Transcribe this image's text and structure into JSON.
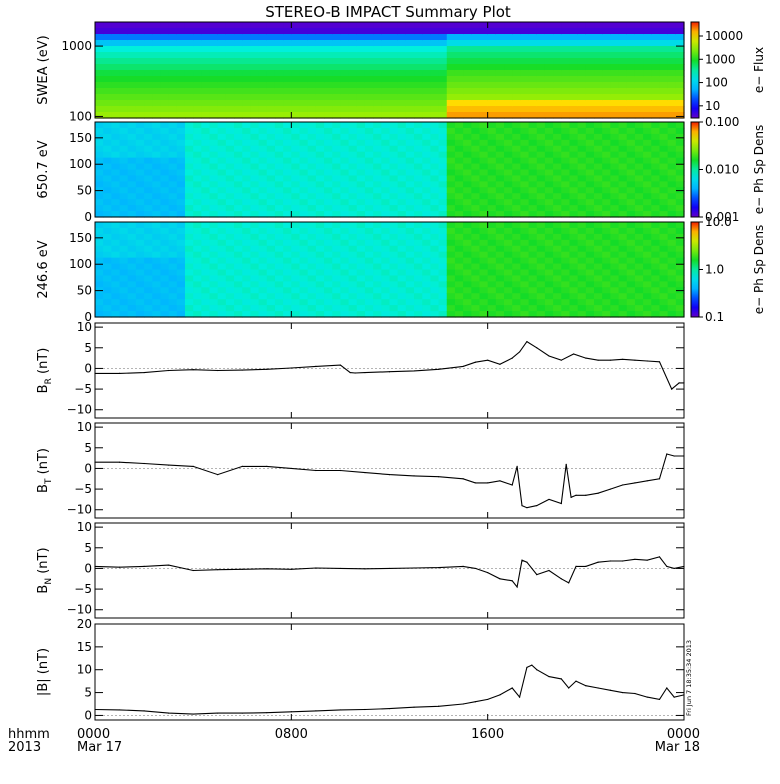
{
  "title": "STEREO-B IMPACT Summary Plot",
  "stamp": "Fri Jun  7 18:35:34 2013",
  "chart_data": [
    {
      "type": "heatmap",
      "id": "swea",
      "ylabel": "SWEA (eV)",
      "yscale": "log",
      "ylim": [
        95,
        2200
      ],
      "yticks": [
        {
          "v": 100,
          "label": "100"
        },
        {
          "v": 1000,
          "label": "1000"
        }
      ],
      "colorbar": {
        "label": "e− Flux",
        "scale": "log",
        "range": [
          3,
          40000
        ],
        "ticks": [
          {
            "v": 10,
            "label": "10"
          },
          {
            "v": 100,
            "label": "100"
          },
          {
            "v": 1000,
            "label": "1000"
          },
          {
            "v": 10000,
            "label": "10000"
          }
        ]
      }
    },
    {
      "type": "heatmap",
      "id": "pad650",
      "ylabel": "650.7 eV",
      "yscale": "linear",
      "ylim": [
        0,
        180
      ],
      "yticks": [
        {
          "v": 0,
          "label": "0"
        },
        {
          "v": 50,
          "label": "50"
        },
        {
          "v": 100,
          "label": "100"
        },
        {
          "v": 150,
          "label": "150"
        }
      ],
      "colorbar": {
        "label": "e− Ph Sp Dens",
        "scale": "log",
        "range": [
          0.001,
          0.1
        ],
        "ticks": [
          {
            "v": 0.001,
            "label": "0.001"
          },
          {
            "v": 0.01,
            "label": "0.010"
          },
          {
            "v": 0.1,
            "label": "0.100"
          }
        ]
      }
    },
    {
      "type": "heatmap",
      "id": "pad246",
      "ylabel": "246.6 eV",
      "yscale": "linear",
      "ylim": [
        0,
        180
      ],
      "yticks": [
        {
          "v": 0,
          "label": "0"
        },
        {
          "v": 50,
          "label": "50"
        },
        {
          "v": 100,
          "label": "100"
        },
        {
          "v": 150,
          "label": "150"
        }
      ],
      "colorbar": {
        "label": "e− Ph Sp Dens",
        "scale": "log",
        "range": [
          0.1,
          10
        ],
        "ticks": [
          {
            "v": 0.1,
            "label": "0.1"
          },
          {
            "v": 1,
            "label": "1.0"
          },
          {
            "v": 10,
            "label": "10.0"
          }
        ]
      }
    },
    {
      "type": "line",
      "id": "br",
      "ylabel": "B",
      "ysub": "R",
      "yunit": " (nT)",
      "ylim": [
        -12,
        11
      ],
      "yticks": [
        {
          "v": -10,
          "label": "−10"
        },
        {
          "v": -5,
          "label": "−5"
        },
        {
          "v": 0,
          "label": "0"
        },
        {
          "v": 5,
          "label": "5"
        },
        {
          "v": 10,
          "label": "10"
        }
      ],
      "x": [
        0,
        1,
        2,
        3,
        4,
        5,
        6,
        7,
        8,
        9,
        10,
        10.4,
        10.6,
        11,
        12,
        13,
        14,
        15,
        15.5,
        16,
        16.5,
        17,
        17.3,
        17.6,
        18,
        18.5,
        19,
        19.5,
        20,
        20.5,
        21,
        21.5,
        22,
        22.5,
        23,
        23.5,
        23.8,
        24
      ],
      "values": [
        -1.2,
        -1.2,
        -1.0,
        -0.5,
        -0.3,
        -0.5,
        -0.4,
        -0.2,
        0.1,
        0.5,
        0.8,
        -1.0,
        -1.1,
        -1.0,
        -0.8,
        -0.6,
        -0.2,
        0.5,
        1.5,
        2.0,
        1.0,
        2.5,
        4.0,
        6.5,
        5.0,
        3.0,
        2.0,
        3.5,
        2.5,
        2.0,
        2.0,
        2.2,
        2.0,
        1.8,
        1.6,
        -5.0,
        -3.5,
        -3.5
      ]
    },
    {
      "type": "line",
      "id": "bt",
      "ylabel": "B",
      "ysub": "T",
      "yunit": " (nT)",
      "ylim": [
        -12,
        11
      ],
      "yticks": [
        {
          "v": -10,
          "label": "−10"
        },
        {
          "v": -5,
          "label": "−5"
        },
        {
          "v": 0,
          "label": "0"
        },
        {
          "v": 5,
          "label": "5"
        },
        {
          "v": 10,
          "label": "10"
        }
      ],
      "x": [
        0,
        1,
        2,
        3,
        4,
        5,
        6,
        7,
        8,
        9,
        10,
        11,
        12,
        13,
        14,
        15,
        15.5,
        16,
        16.5,
        17,
        17.2,
        17.4,
        17.6,
        18,
        18.5,
        19,
        19.2,
        19.4,
        19.6,
        20,
        20.5,
        21,
        21.5,
        22,
        22.5,
        23,
        23.3,
        23.6,
        24
      ],
      "values": [
        1.5,
        1.5,
        1.2,
        0.8,
        0.5,
        -1.5,
        0.5,
        0.5,
        0.0,
        -0.5,
        -0.5,
        -1.0,
        -1.5,
        -1.8,
        -2.0,
        -2.5,
        -3.5,
        -3.5,
        -3.0,
        -4.0,
        0.5,
        -9.0,
        -9.5,
        -9.0,
        -7.5,
        -8.5,
        1.0,
        -7.0,
        -6.5,
        -6.5,
        -6.0,
        -5.0,
        -4.0,
        -3.5,
        -3.0,
        -2.5,
        3.5,
        3.0,
        3.0
      ]
    },
    {
      "type": "line",
      "id": "bn",
      "ylabel": "B",
      "ysub": "N",
      "yunit": " (nT)",
      "ylim": [
        -12,
        11
      ],
      "yticks": [
        {
          "v": -10,
          "label": "−10"
        },
        {
          "v": -5,
          "label": "−5"
        },
        {
          "v": 0,
          "label": "0"
        },
        {
          "v": 5,
          "label": "5"
        },
        {
          "v": 10,
          "label": "10"
        }
      ],
      "x": [
        0,
        1,
        2,
        3,
        4,
        5,
        6,
        7,
        8,
        9,
        10,
        11,
        12,
        13,
        14,
        15,
        15.5,
        16,
        16.5,
        17,
        17.2,
        17.4,
        17.6,
        18,
        18.5,
        19,
        19.3,
        19.6,
        20,
        20.5,
        21,
        21.5,
        22,
        22.5,
        23,
        23.3,
        23.6,
        24
      ],
      "values": [
        0.5,
        0.3,
        0.5,
        0.8,
        -0.5,
        -0.3,
        -0.2,
        -0.1,
        -0.2,
        0.1,
        0.0,
        -0.1,
        0.0,
        0.1,
        0.2,
        0.5,
        0.0,
        -1.0,
        -2.5,
        -3.0,
        -4.5,
        2.0,
        1.5,
        -1.5,
        -0.5,
        -2.5,
        -3.5,
        0.5,
        0.5,
        1.5,
        1.8,
        1.8,
        2.2,
        2.0,
        2.8,
        0.5,
        0.0,
        0.5
      ]
    },
    {
      "type": "line",
      "id": "bmag",
      "ylabel": "|B| (nT)",
      "ylim": [
        -1,
        20
      ],
      "yticks": [
        {
          "v": 0,
          "label": "0"
        },
        {
          "v": 5,
          "label": "5"
        },
        {
          "v": 10,
          "label": "10"
        },
        {
          "v": 15,
          "label": "15"
        },
        {
          "v": 20,
          "label": "20"
        }
      ],
      "x": [
        0,
        1,
        2,
        3,
        4,
        5,
        6,
        7,
        8,
        9,
        10,
        11,
        12,
        13,
        14,
        15,
        15.5,
        16,
        16.5,
        17,
        17.3,
        17.6,
        17.8,
        18,
        18.5,
        19,
        19.3,
        19.6,
        20,
        20.5,
        21,
        21.5,
        22,
        22.5,
        23,
        23.3,
        23.6,
        24
      ],
      "values": [
        1.3,
        1.2,
        1.0,
        0.5,
        0.3,
        0.5,
        0.5,
        0.6,
        0.8,
        1.0,
        1.2,
        1.3,
        1.5,
        1.8,
        2.0,
        2.5,
        3.0,
        3.5,
        4.5,
        6.0,
        4.0,
        10.5,
        11.0,
        10.0,
        8.5,
        8.0,
        6.0,
        7.5,
        6.5,
        6.0,
        5.5,
        5.0,
        4.8,
        4.0,
        3.5,
        6.0,
        4.0,
        4.5
      ]
    }
  ],
  "xaxis": {
    "xlim": [
      0,
      24
    ],
    "ticks": [
      {
        "v": 0,
        "label": "0000",
        "date": "Mar 17"
      },
      {
        "v": 8,
        "label": "0800",
        "date": ""
      },
      {
        "v": 16,
        "label": "1600",
        "date": ""
      },
      {
        "v": 24,
        "label": "0000",
        "date": "Mar 18"
      }
    ],
    "label_line1": "hhmm",
    "label_line2": "2013"
  }
}
